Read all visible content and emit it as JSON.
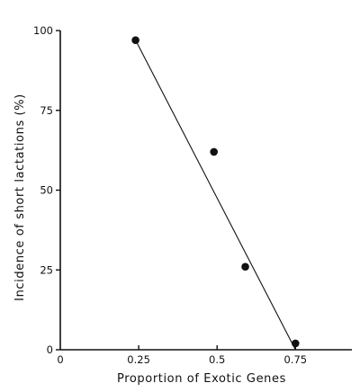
{
  "chart_data": {
    "type": "scatter",
    "title": "",
    "xlabel": "Proportion of Exotic Genes",
    "ylabel": "Incidence of short lactations (%)",
    "xlim": [
      0,
      0.93
    ],
    "ylim": [
      0,
      100
    ],
    "x_ticks": [
      0,
      0.25,
      0.5,
      0.75
    ],
    "x_tick_labels": [
      "0",
      "0.25",
      "0.5",
      "0.75"
    ],
    "y_ticks": [
      0,
      25,
      50,
      75,
      100
    ],
    "y_tick_labels": [
      "0",
      "25",
      "50",
      "75",
      "100"
    ],
    "grid": false,
    "legend": "none",
    "points": [
      {
        "x": 0.24,
        "y": 97
      },
      {
        "x": 0.49,
        "y": 62
      },
      {
        "x": 0.59,
        "y": 26
      },
      {
        "x": 0.75,
        "y": 2
      }
    ],
    "trend_line": [
      {
        "x": 0.24,
        "y": 97
      },
      {
        "x": 0.75,
        "y": 0
      }
    ],
    "colors": {
      "marks": "#111111",
      "background": "#ffffff"
    }
  }
}
